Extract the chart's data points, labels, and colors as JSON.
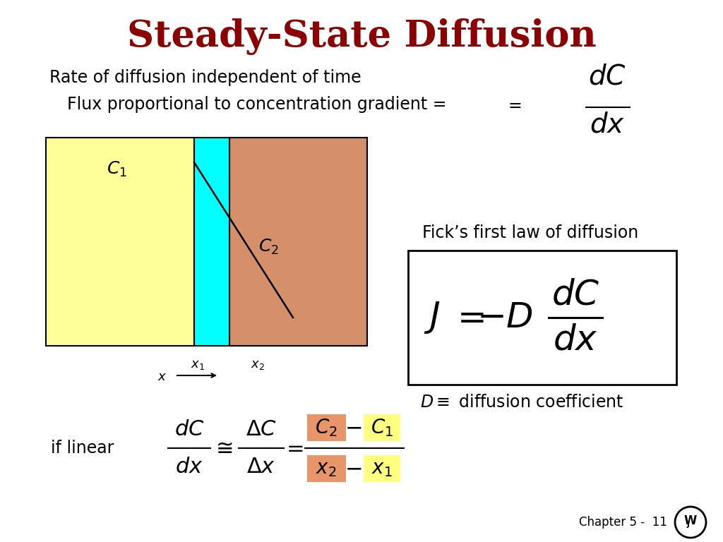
{
  "title": "Steady-State Diffusion",
  "title_color": "#8B0000",
  "bg_color": "#FFFFFF",
  "line1": "Rate of diffusion independent of time",
  "line2": "Flux proportional to concentration gradient =",
  "ficks_label": "Fick’s first law of diffusion",
  "d_coeff_label": "diffusion coefficient",
  "if_linear_text": "if linear",
  "chapter": "Chapter 5 -  11",
  "yellow_color": "#FFFF99",
  "cyan_color": "#00FFFF",
  "salmon_color": "#D4906A",
  "box_salmon_color": "#E8956A",
  "box_yellow_color": "#FFFF80",
  "text_black": "#000000",
  "title_fontsize": 38,
  "body_fontsize": 17,
  "eq_fontsize": 26,
  "big_eq_fontsize": 36
}
